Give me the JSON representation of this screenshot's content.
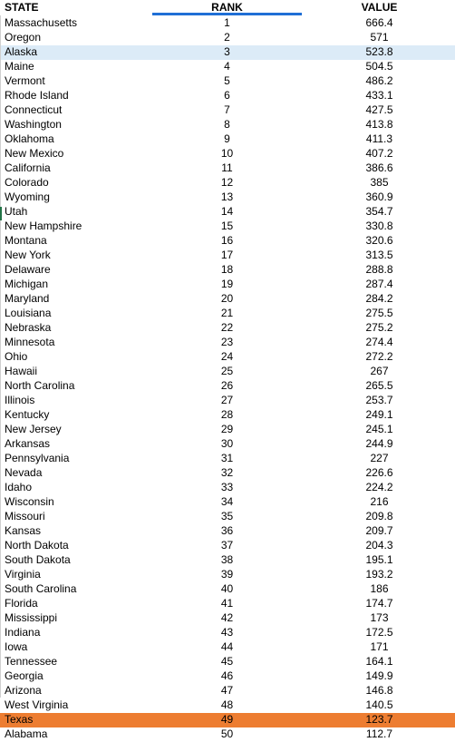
{
  "headers": {
    "state": "STATE",
    "rank": "RANK",
    "value": "VALUE"
  },
  "colors": {
    "selected_row": "#dcebf7",
    "highlight_row": "#ed7d31",
    "sort_indicator": "#1f6fd6"
  },
  "highlighted_states": {
    "selected": "Alaska",
    "emphasized": "Texas"
  },
  "rows": [
    {
      "state": "Massachusetts",
      "rank": "1",
      "value": "666.4"
    },
    {
      "state": "Oregon",
      "rank": "2",
      "value": "571"
    },
    {
      "state": "Alaska",
      "rank": "3",
      "value": "523.8"
    },
    {
      "state": "Maine",
      "rank": "4",
      "value": "504.5"
    },
    {
      "state": "Vermont",
      "rank": "5",
      "value": "486.2"
    },
    {
      "state": "Rhode Island",
      "rank": "6",
      "value": "433.1"
    },
    {
      "state": "Connecticut",
      "rank": "7",
      "value": "427.5"
    },
    {
      "state": "Washington",
      "rank": "8",
      "value": "413.8"
    },
    {
      "state": "Oklahoma",
      "rank": "9",
      "value": "411.3"
    },
    {
      "state": "New Mexico",
      "rank": "10",
      "value": "407.2"
    },
    {
      "state": "California",
      "rank": "11",
      "value": "386.6"
    },
    {
      "state": "Colorado",
      "rank": "12",
      "value": "385"
    },
    {
      "state": "Wyoming",
      "rank": "13",
      "value": "360.9"
    },
    {
      "state": "Utah",
      "rank": "14",
      "value": "354.7"
    },
    {
      "state": "New Hampshire",
      "rank": "15",
      "value": "330.8"
    },
    {
      "state": "Montana",
      "rank": "16",
      "value": "320.6"
    },
    {
      "state": "New York",
      "rank": "17",
      "value": "313.5"
    },
    {
      "state": "Delaware",
      "rank": "18",
      "value": "288.8"
    },
    {
      "state": "Michigan",
      "rank": "19",
      "value": "287.4"
    },
    {
      "state": "Maryland",
      "rank": "20",
      "value": "284.2"
    },
    {
      "state": "Louisiana",
      "rank": "21",
      "value": "275.5"
    },
    {
      "state": "Nebraska",
      "rank": "22",
      "value": "275.2"
    },
    {
      "state": "Minnesota",
      "rank": "23",
      "value": "274.4"
    },
    {
      "state": "Ohio",
      "rank": "24",
      "value": "272.2"
    },
    {
      "state": "Hawaii",
      "rank": "25",
      "value": "267"
    },
    {
      "state": "North Carolina",
      "rank": "26",
      "value": "265.5"
    },
    {
      "state": "Illinois",
      "rank": "27",
      "value": "253.7"
    },
    {
      "state": "Kentucky",
      "rank": "28",
      "value": "249.1"
    },
    {
      "state": "New Jersey",
      "rank": "29",
      "value": "245.1"
    },
    {
      "state": "Arkansas",
      "rank": "30",
      "value": "244.9"
    },
    {
      "state": "Pennsylvania",
      "rank": "31",
      "value": "227"
    },
    {
      "state": "Nevada",
      "rank": "32",
      "value": "226.6"
    },
    {
      "state": "Idaho",
      "rank": "33",
      "value": "224.2"
    },
    {
      "state": "Wisconsin",
      "rank": "34",
      "value": "216"
    },
    {
      "state": "Missouri",
      "rank": "35",
      "value": "209.8"
    },
    {
      "state": "Kansas",
      "rank": "36",
      "value": "209.7"
    },
    {
      "state": "North Dakota",
      "rank": "37",
      "value": "204.3"
    },
    {
      "state": "South Dakota",
      "rank": "38",
      "value": "195.1"
    },
    {
      "state": "Virginia",
      "rank": "39",
      "value": "193.2"
    },
    {
      "state": "South Carolina",
      "rank": "40",
      "value": "186"
    },
    {
      "state": "Florida",
      "rank": "41",
      "value": "174.7"
    },
    {
      "state": "Mississippi",
      "rank": "42",
      "value": "173"
    },
    {
      "state": "Indiana",
      "rank": "43",
      "value": "172.5"
    },
    {
      "state": "Iowa",
      "rank": "44",
      "value": "171"
    },
    {
      "state": "Tennessee",
      "rank": "45",
      "value": "164.1"
    },
    {
      "state": "Georgia",
      "rank": "46",
      "value": "149.9"
    },
    {
      "state": "Arizona",
      "rank": "47",
      "value": "146.8"
    },
    {
      "state": "West Virginia",
      "rank": "48",
      "value": "140.5"
    },
    {
      "state": "Texas",
      "rank": "49",
      "value": "123.7"
    },
    {
      "state": "Alabama",
      "rank": "50",
      "value": "112.7"
    }
  ]
}
